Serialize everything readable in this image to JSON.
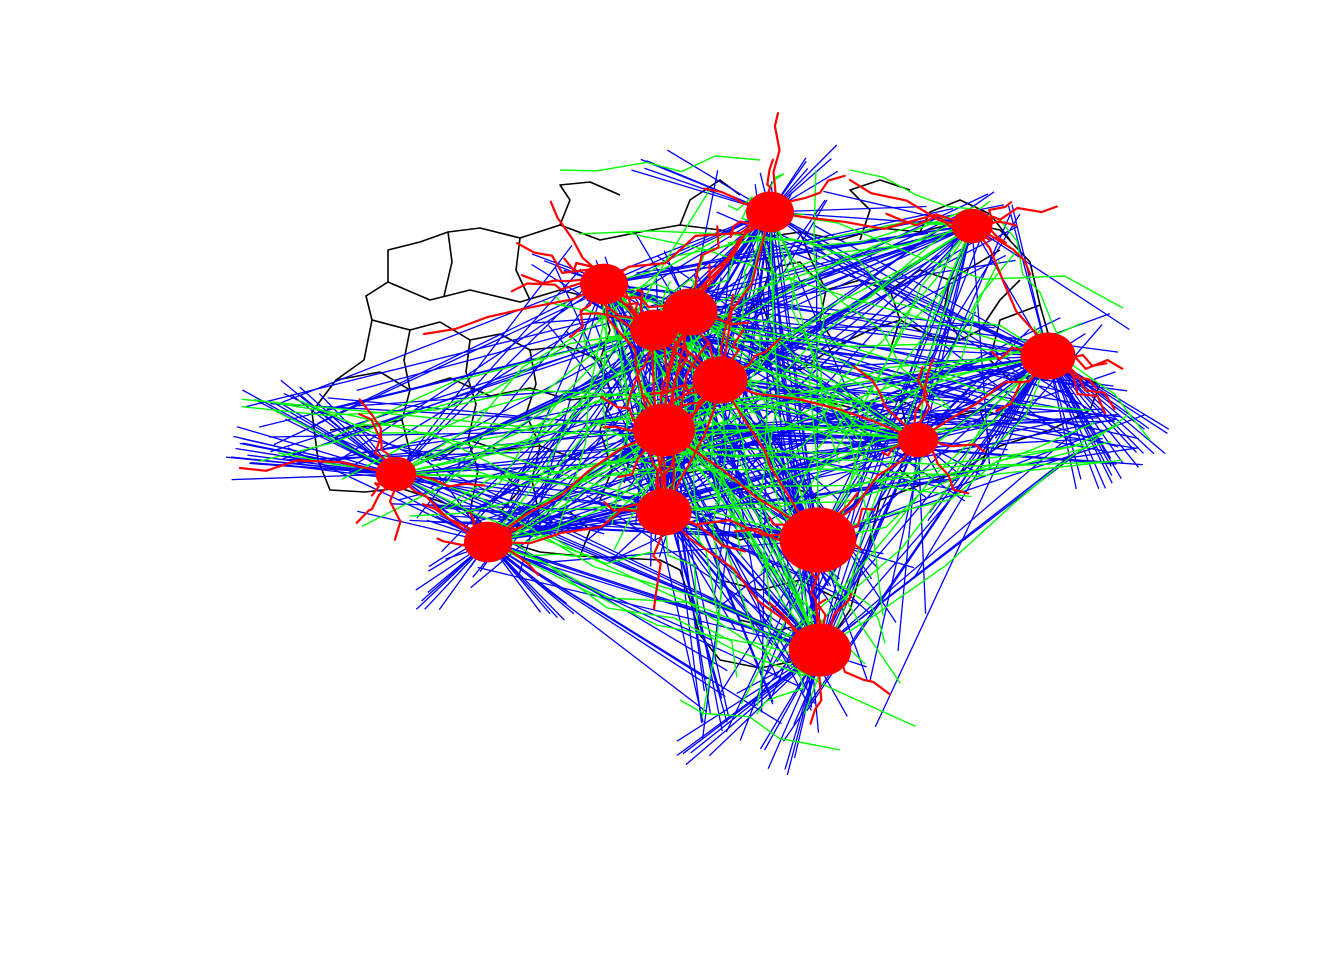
{
  "map": {
    "layers": [
      {
        "name": "zone-boundaries",
        "color": "#000000"
      },
      {
        "name": "straight-line-desire-lines",
        "color": "#0000ff"
      },
      {
        "name": "route-lines-fast",
        "color": "#00ff00"
      },
      {
        "name": "route-network-quiet",
        "color": "#ff0000"
      }
    ],
    "hubs": [
      {
        "id": "hub-1",
        "weight": 9
      },
      {
        "id": "hub-2",
        "weight": 5
      },
      {
        "id": "hub-3",
        "weight": 6
      },
      {
        "id": "hub-4",
        "weight": 5
      },
      {
        "id": "hub-5",
        "weight": 6
      },
      {
        "id": "hub-6",
        "weight": 7
      },
      {
        "id": "hub-7",
        "weight": 6
      },
      {
        "id": "hub-8",
        "weight": 5
      },
      {
        "id": "hub-9",
        "weight": 7
      },
      {
        "id": "hub-10",
        "weight": 6
      },
      {
        "id": "hub-11",
        "weight": 5
      },
      {
        "id": "hub-12",
        "weight": 4
      },
      {
        "id": "hub-13",
        "weight": 4
      },
      {
        "id": "hub-14",
        "weight": 4
      }
    ]
  }
}
